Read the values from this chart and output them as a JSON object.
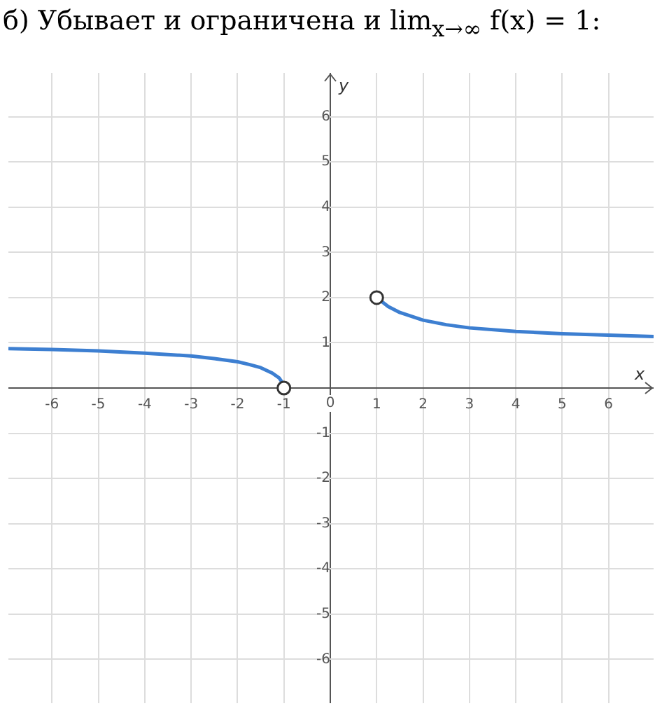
{
  "chart_data": {
    "type": "line",
    "title": "б) Убывает и ограничена и lim$_{x→∞}$ f(x) = 1:",
    "xlabel": "x",
    "ylabel": "y",
    "xlim": [
      -6.94,
      6.97
    ],
    "ylim": [
      -6.97,
      6.97
    ],
    "xticks": [
      -6,
      -5,
      -4,
      -3,
      -2,
      -1,
      0,
      1,
      2,
      3,
      4,
      5,
      6
    ],
    "yticks": [
      -6,
      -5,
      -4,
      -3,
      -2,
      -1,
      {
        "value": 0,
        "label": null
      },
      1,
      2,
      3,
      4,
      5,
      6
    ],
    "grid": true,
    "legend": false,
    "line_style": "solid",
    "series": [
      {
        "type": "line",
        "color": "#3d7fd1",
        "marker": "none",
        "x": [
          -6.94,
          -6,
          -5,
          -4,
          -3,
          -2.5,
          -2,
          -1.75,
          -1.5,
          -1.25,
          -1.1,
          -1.02,
          -1
        ],
        "values": [
          0.87,
          0.85,
          0.82,
          0.77,
          0.71,
          0.65,
          0.58,
          0.52,
          0.45,
          0.33,
          0.22,
          0.1,
          0
        ]
      },
      {
        "type": "line",
        "color": "#3d7fd1",
        "marker": "none",
        "x": [
          1,
          1.25,
          1.5,
          2,
          2.5,
          3,
          4,
          5,
          6,
          6.97
        ],
        "values": [
          2,
          1.8,
          1.67,
          1.5,
          1.4,
          1.33,
          1.25,
          1.2,
          1.17,
          1.14
        ]
      },
      {
        "type": "scatter",
        "color": "#333333",
        "marker": "circle",
        "x": [
          -1,
          1
        ],
        "values": [
          0,
          2
        ]
      }
    ]
  }
}
